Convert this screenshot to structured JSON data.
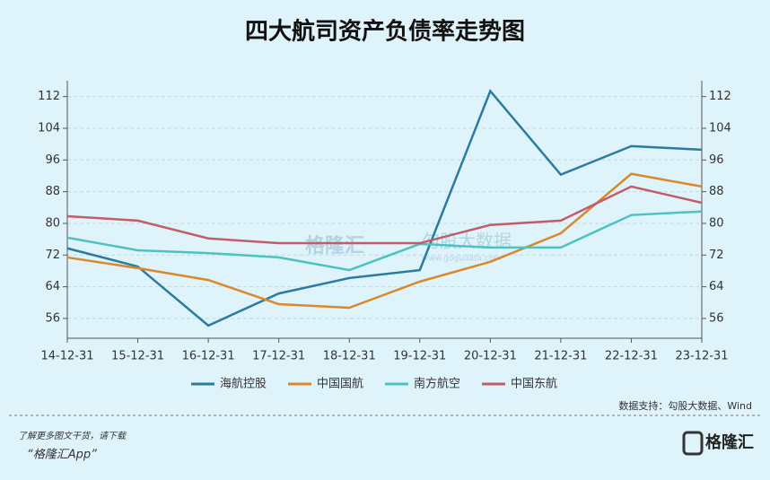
{
  "chart_data": {
    "type": "line",
    "title": "四大航司资产负债率走势图",
    "categories": [
      "14-12-31",
      "15-12-31",
      "16-12-31",
      "17-12-31",
      "18-12-31",
      "19-12-31",
      "20-12-31",
      "21-12-31",
      "22-12-31",
      "23-12-31"
    ],
    "series": [
      {
        "name": "海航控股",
        "color": "#2a7ba0",
        "values": [
          73.7,
          69.1,
          54.2,
          62.3,
          66.2,
          68.2,
          113.4,
          92.3,
          99.5,
          98.6
        ]
      },
      {
        "name": "中国国航",
        "color": "#d9892b",
        "values": [
          71.4,
          68.7,
          65.7,
          59.6,
          58.7,
          65.3,
          70.3,
          77.5,
          92.5,
          89.3
        ]
      },
      {
        "name": "南方航空",
        "color": "#4cc3c0",
        "values": [
          76.4,
          73.2,
          72.5,
          71.4,
          68.2,
          74.8,
          73.9,
          73.9,
          82.1,
          83.0
        ]
      },
      {
        "name": "中国东航",
        "color": "#c25b6a",
        "values": [
          81.8,
          80.7,
          76.2,
          75.0,
          75.0,
          75.0,
          79.6,
          80.7,
          89.3,
          85.2
        ]
      }
    ],
    "ylim": [
      51,
      116
    ],
    "yticks": [
      56,
      64,
      72,
      80,
      88,
      96,
      104,
      112
    ],
    "y2lim": [
      51,
      116
    ],
    "y2ticks": [
      56,
      64,
      72,
      80,
      88,
      96,
      104,
      112
    ],
    "grid": true,
    "source": "数据支持：勾股大数据、Wind",
    "watermark": {
      "brand": "格隆汇",
      "partner": "勾股大数据",
      "url": "www.gogudata.com"
    },
    "footer": {
      "note": "了解更多图文干货，请下载",
      "app": "“格隆汇App”",
      "logo": "格隆汇"
    }
  }
}
